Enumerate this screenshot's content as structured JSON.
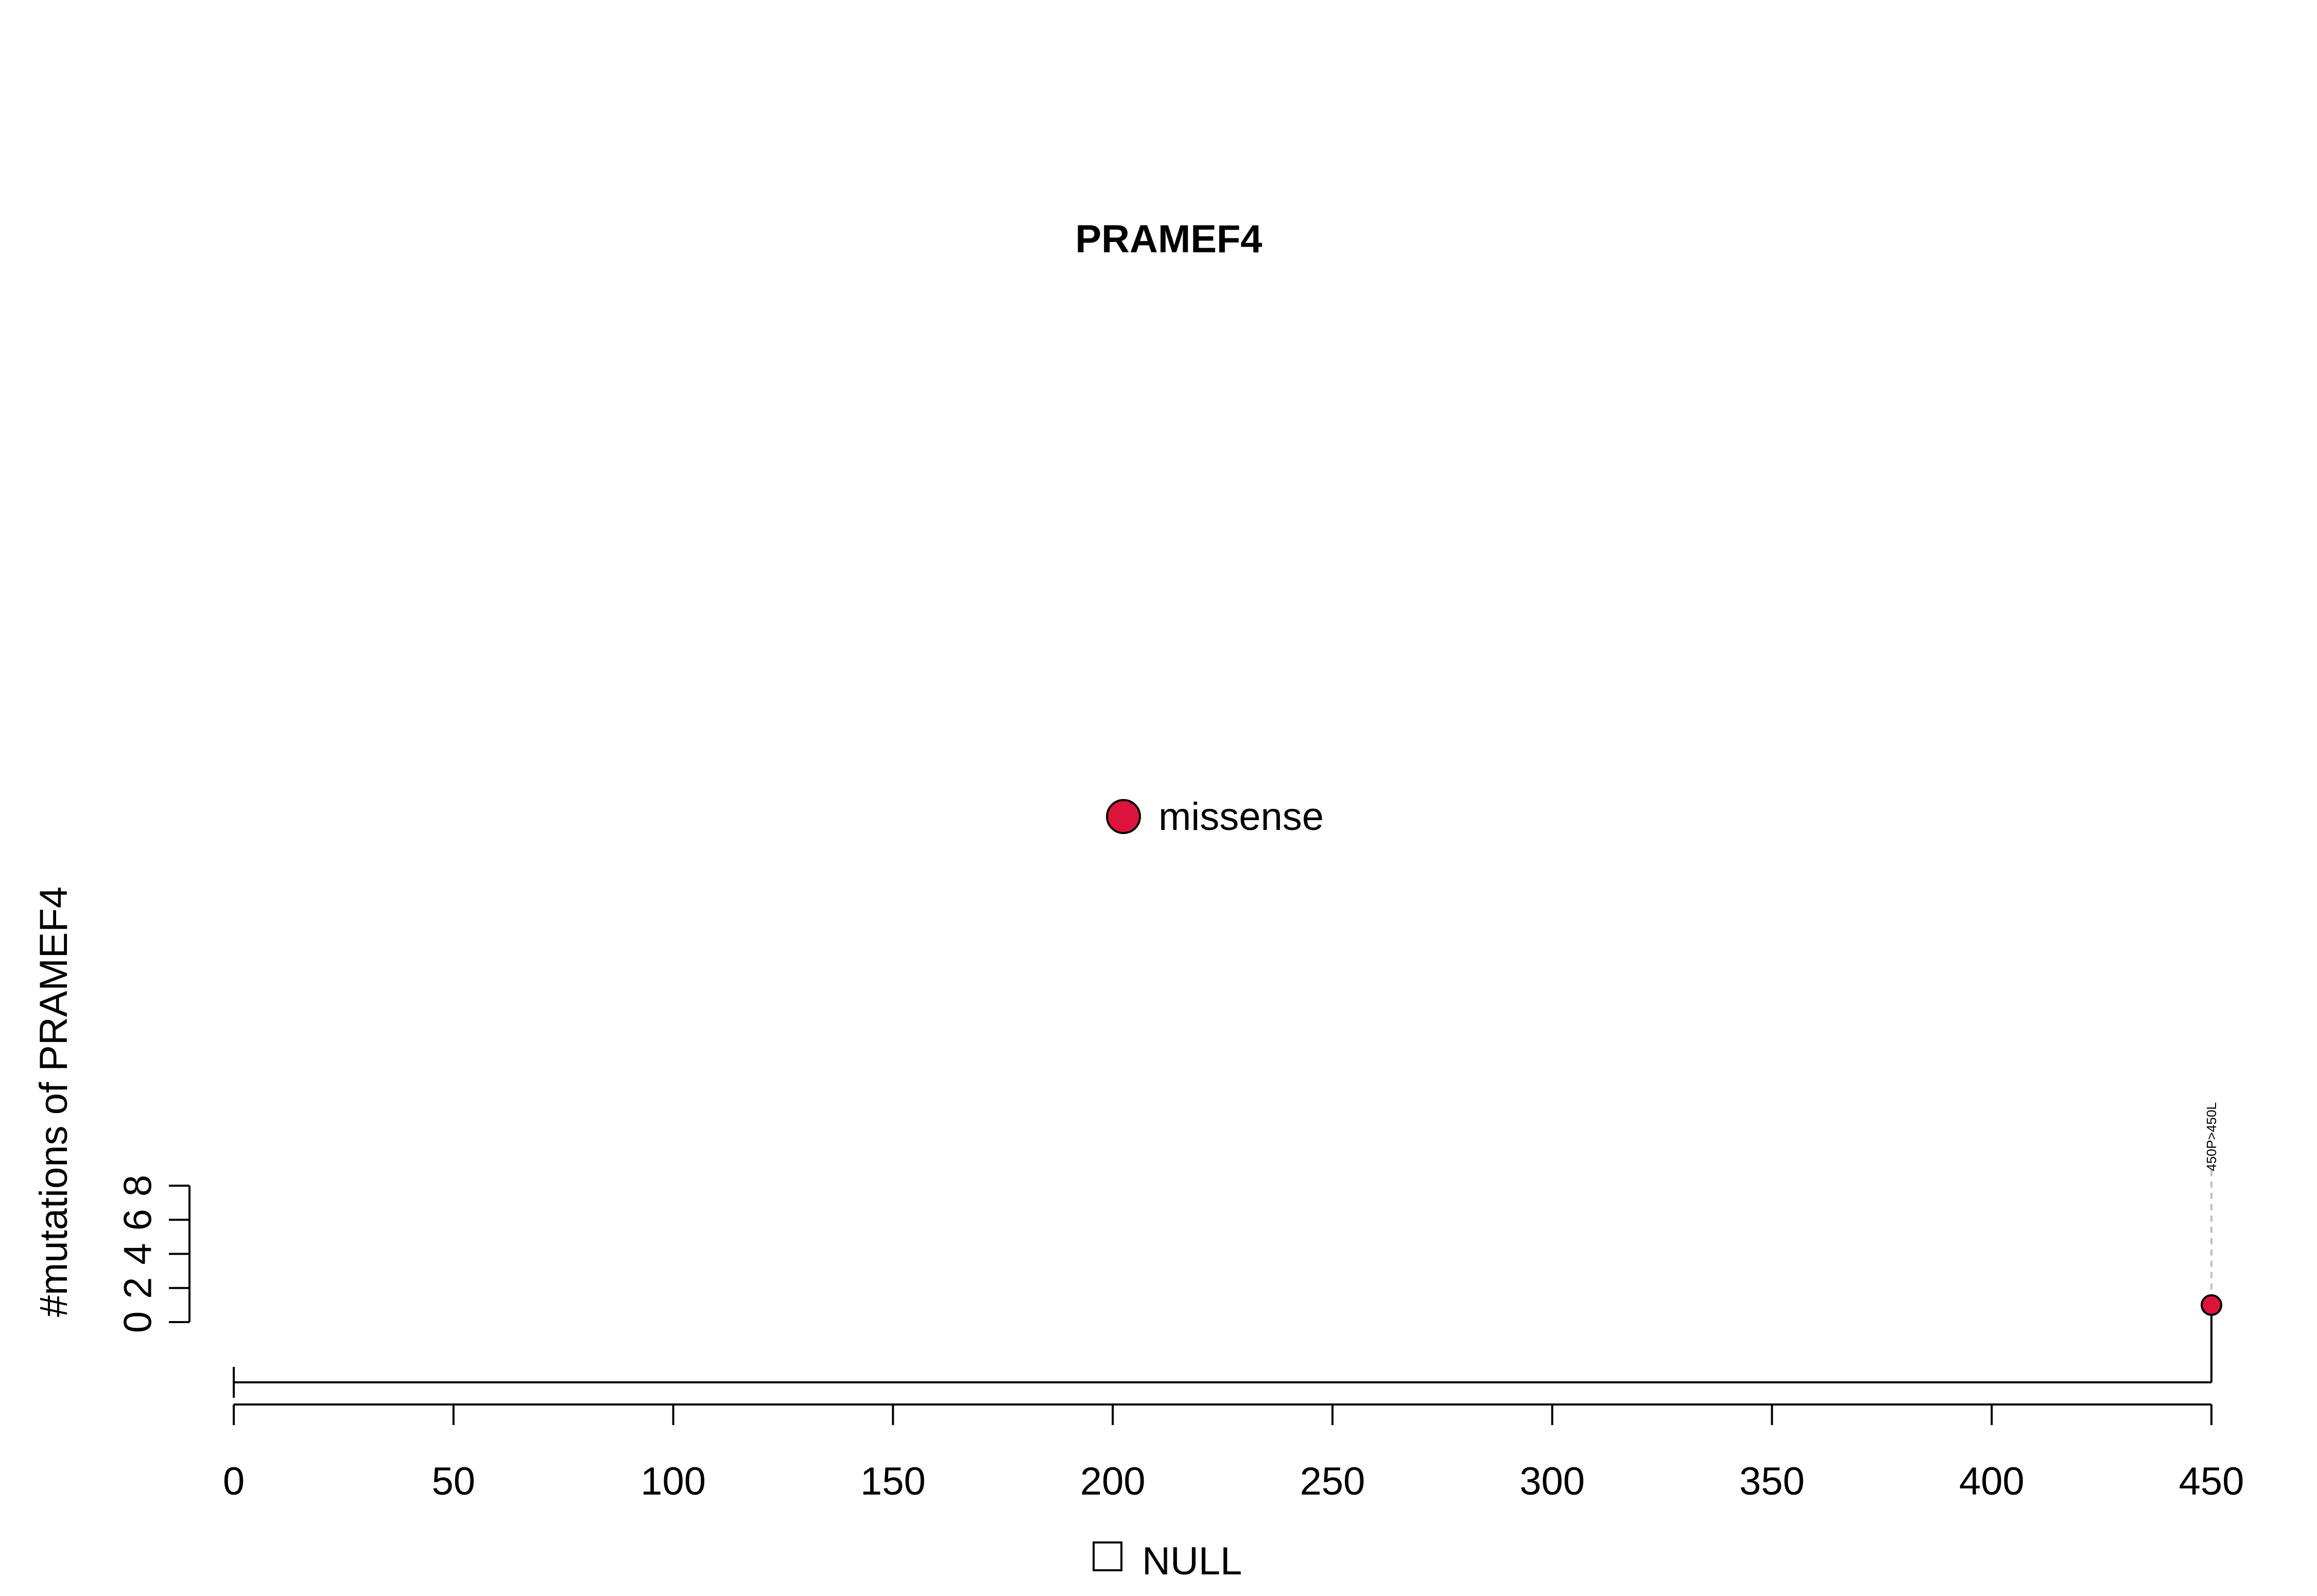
{
  "chart_data": {
    "type": "scatter",
    "title": "PRAMEF4",
    "xlabel": "",
    "ylabel": "#mutations of PRAMEF4",
    "xlim": [
      0,
      450
    ],
    "ylim": [
      0,
      8
    ],
    "x_ticks": [
      "0",
      "50",
      "100",
      "150",
      "200",
      "250",
      "300",
      "350",
      "400",
      "450"
    ],
    "y_ticks": [
      "0",
      "2",
      "4",
      "6",
      "8"
    ],
    "protein_length": 450,
    "series": [
      {
        "name": "missense",
        "color": "#dc143c",
        "points": [
          {
            "x": 450,
            "y": 1,
            "label": "450P>450L"
          }
        ]
      }
    ],
    "legend": {
      "placement": "center",
      "entries": [
        {
          "label": "missense",
          "color": "#dc143c"
        }
      ]
    },
    "domain_legend": {
      "placement": "bottom",
      "entries": [
        {
          "label": "NULL",
          "color": "#ffffff"
        }
      ]
    },
    "grid": false
  }
}
